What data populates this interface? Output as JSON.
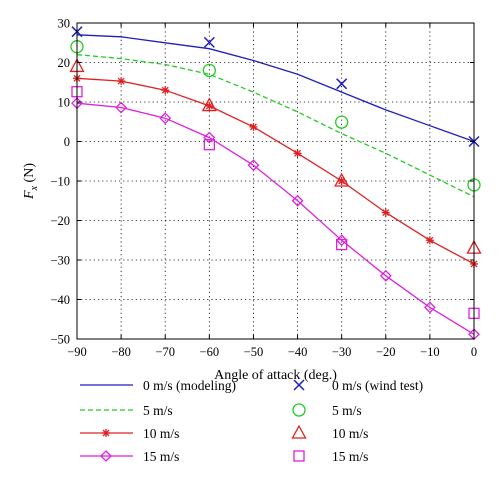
{
  "chart_data": {
    "type": "line",
    "xlabel": "Angle of attack (deg.)",
    "ylabel_main": "F",
    "ylabel_sub": "x",
    "ylabel_unit": " (N)",
    "xlim": [
      -90,
      0
    ],
    "ylim": [
      -50,
      30
    ],
    "xticks": [
      -90,
      -80,
      -70,
      -60,
      -50,
      -40,
      -30,
      -20,
      -10,
      0
    ],
    "yticks": [
      30,
      20,
      10,
      0,
      -10,
      -20,
      -30,
      -40,
      -50
    ],
    "grid": true,
    "legend_position": "bottom",
    "model_series": [
      {
        "name": "0 m/s (modeling)",
        "color": "#1f1fbf",
        "style": "solid",
        "marker": "none",
        "x": [
          -90,
          -80,
          -70,
          -60,
          -50,
          -40,
          -30,
          -20,
          -10,
          0
        ],
        "y": [
          27,
          26.5,
          25,
          23.5,
          20.5,
          17,
          12.5,
          8,
          4,
          0
        ]
      },
      {
        "name": "5 m/s",
        "color": "#22cc22",
        "style": "dashed",
        "marker": "none",
        "x": [
          -90,
          -80,
          -70,
          -60,
          -50,
          -40,
          -30,
          -20,
          -10,
          0
        ],
        "y": [
          22,
          21,
          19.5,
          17,
          12.5,
          7.5,
          2,
          -3,
          -8.5,
          -14
        ]
      },
      {
        "name": "10 m/s",
        "color": "#e02020",
        "style": "solid",
        "marker": "asterisk",
        "x": [
          -90,
          -80,
          -70,
          -60,
          -50,
          -40,
          -30,
          -20,
          -10,
          0
        ],
        "y": [
          16,
          15.3,
          13,
          9,
          3.7,
          -3,
          -10,
          -18,
          -25,
          -31
        ]
      },
      {
        "name": "15 m/s",
        "color": "#dd22dd",
        "style": "solid",
        "marker": "diamond",
        "x": [
          -90,
          -80,
          -70,
          -60,
          -50,
          -40,
          -30,
          -20,
          -10,
          0
        ],
        "y": [
          9.7,
          8.6,
          5.9,
          1.0,
          -6.0,
          -15.0,
          -25.0,
          -34.0,
          -42.0,
          -48.8
        ]
      }
    ],
    "test_series": [
      {
        "name": "0 m/s (wind test)",
        "color": "#1f1fbf",
        "marker": "x",
        "x": [
          -90,
          -60,
          -30,
          0
        ],
        "y": [
          27.8,
          25.1,
          14.6,
          0
        ]
      },
      {
        "name": "5 m/s",
        "color": "#22cc22",
        "marker": "circle",
        "x": [
          -90,
          -60,
          -30,
          0
        ],
        "y": [
          24,
          18,
          4.9,
          -11
        ]
      },
      {
        "name": "10 m/s",
        "color": "#e02020",
        "marker": "triangle",
        "x": [
          -90,
          -60,
          -30,
          0
        ],
        "y": [
          19,
          9.1,
          -10,
          -27
        ]
      },
      {
        "name": "15 m/s",
        "color": "#dd22dd",
        "marker": "square",
        "x": [
          -90,
          -60,
          -30,
          0
        ],
        "y": [
          12.6,
          -0.8,
          -26.1,
          -43.5
        ]
      }
    ]
  }
}
